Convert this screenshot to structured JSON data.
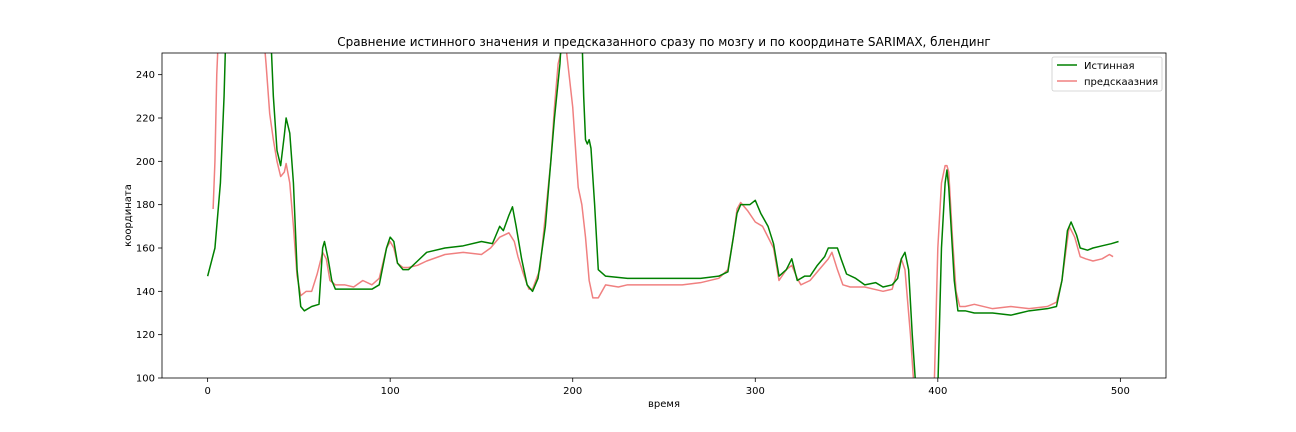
{
  "chart_data": {
    "type": "line",
    "title": "Сравнение истинного значения и предсказанного сразу по мозгу и по координате SARIMAX, блендинг",
    "xlabel": "время",
    "ylabel": "координата",
    "xlim": [
      -25,
      525
    ],
    "ylim": [
      100,
      250
    ],
    "xticks": [
      0,
      100,
      200,
      300,
      400,
      500
    ],
    "yticks": [
      100,
      120,
      140,
      160,
      180,
      200,
      220,
      240
    ],
    "grid": false,
    "legend_position": "top-right",
    "series": [
      {
        "name": "Истинная",
        "color": "#008000",
        "points": [
          [
            0,
            147
          ],
          [
            4,
            160
          ],
          [
            7,
            190
          ],
          [
            9,
            230
          ],
          [
            10,
            260
          ],
          [
            34,
            270
          ],
          [
            36,
            230
          ],
          [
            38,
            205
          ],
          [
            40,
            198
          ],
          [
            42,
            212
          ],
          [
            43,
            220
          ],
          [
            45,
            213
          ],
          [
            47,
            190
          ],
          [
            49,
            150
          ],
          [
            51,
            133
          ],
          [
            53,
            131
          ],
          [
            57,
            133
          ],
          [
            61,
            134
          ],
          [
            63,
            160
          ],
          [
            64,
            163
          ],
          [
            66,
            155
          ],
          [
            68,
            145
          ],
          [
            70,
            141
          ],
          [
            75,
            141
          ],
          [
            80,
            141
          ],
          [
            90,
            141
          ],
          [
            94,
            143
          ],
          [
            98,
            160
          ],
          [
            100,
            165
          ],
          [
            102,
            163
          ],
          [
            104,
            153
          ],
          [
            107,
            150
          ],
          [
            110,
            150
          ],
          [
            115,
            154
          ],
          [
            120,
            158
          ],
          [
            130,
            160
          ],
          [
            140,
            161
          ],
          [
            150,
            163
          ],
          [
            156,
            162
          ],
          [
            158,
            166
          ],
          [
            160,
            170
          ],
          [
            162,
            168
          ],
          [
            165,
            175
          ],
          [
            167,
            179
          ],
          [
            169,
            170
          ],
          [
            172,
            155
          ],
          [
            175,
            143
          ],
          [
            178,
            140
          ],
          [
            181,
            146
          ],
          [
            185,
            170
          ],
          [
            190,
            220
          ],
          [
            193,
            245
          ],
          [
            194,
            260
          ],
          [
            205,
            260
          ],
          [
            206,
            230
          ],
          [
            207,
            210
          ],
          [
            208,
            208
          ],
          [
            209,
            210
          ],
          [
            210,
            206
          ],
          [
            212,
            180
          ],
          [
            214,
            150
          ],
          [
            218,
            147
          ],
          [
            230,
            146
          ],
          [
            250,
            146
          ],
          [
            270,
            146
          ],
          [
            280,
            147
          ],
          [
            285,
            149
          ],
          [
            288,
            165
          ],
          [
            290,
            176
          ],
          [
            292,
            180
          ],
          [
            297,
            180
          ],
          [
            300,
            182
          ],
          [
            303,
            176
          ],
          [
            307,
            170
          ],
          [
            310,
            162
          ],
          [
            313,
            147
          ],
          [
            317,
            150
          ],
          [
            320,
            155
          ],
          [
            323,
            145
          ],
          [
            327,
            147
          ],
          [
            330,
            147
          ],
          [
            334,
            152
          ],
          [
            338,
            156
          ],
          [
            340,
            160
          ],
          [
            345,
            160
          ],
          [
            347,
            155
          ],
          [
            350,
            148
          ],
          [
            355,
            146
          ],
          [
            360,
            143
          ],
          [
            366,
            144
          ],
          [
            370,
            142
          ],
          [
            375,
            143
          ],
          [
            378,
            146
          ],
          [
            380,
            155
          ],
          [
            382,
            158
          ],
          [
            384,
            150
          ],
          [
            386,
            120
          ],
          [
            388,
            95
          ],
          [
            400,
            95
          ],
          [
            402,
            160
          ],
          [
            404,
            190
          ],
          [
            405,
            196
          ],
          [
            406,
            188
          ],
          [
            409,
            145
          ],
          [
            411,
            131
          ],
          [
            415,
            131
          ],
          [
            420,
            130
          ],
          [
            430,
            130
          ],
          [
            440,
            129
          ],
          [
            450,
            131
          ],
          [
            460,
            132
          ],
          [
            465,
            133
          ],
          [
            468,
            145
          ],
          [
            471,
            168
          ],
          [
            473,
            172
          ],
          [
            476,
            166
          ],
          [
            478,
            160
          ],
          [
            482,
            159
          ],
          [
            485,
            160
          ],
          [
            490,
            161
          ],
          [
            495,
            162
          ],
          [
            499,
            163
          ]
        ]
      },
      {
        "name": "предскаазния",
        "color": "#f08080",
        "points": [
          [
            3,
            178
          ],
          [
            4,
            200
          ],
          [
            5,
            240
          ],
          [
            6,
            260
          ],
          [
            30,
            265
          ],
          [
            32,
            245
          ],
          [
            34,
            222
          ],
          [
            36,
            210
          ],
          [
            38,
            200
          ],
          [
            40,
            193
          ],
          [
            42,
            195
          ],
          [
            43,
            199
          ],
          [
            45,
            190
          ],
          [
            47,
            170
          ],
          [
            49,
            147
          ],
          [
            51,
            138
          ],
          [
            54,
            140
          ],
          [
            57,
            140
          ],
          [
            60,
            148
          ],
          [
            63,
            158
          ],
          [
            65,
            155
          ],
          [
            67,
            145
          ],
          [
            70,
            143
          ],
          [
            75,
            143
          ],
          [
            80,
            142
          ],
          [
            85,
            145
          ],
          [
            90,
            143
          ],
          [
            94,
            146
          ],
          [
            98,
            160
          ],
          [
            100,
            163
          ],
          [
            102,
            160
          ],
          [
            104,
            153
          ],
          [
            107,
            151
          ],
          [
            110,
            151
          ],
          [
            115,
            152
          ],
          [
            120,
            154
          ],
          [
            130,
            157
          ],
          [
            140,
            158
          ],
          [
            150,
            157
          ],
          [
            155,
            160
          ],
          [
            160,
            165
          ],
          [
            165,
            167
          ],
          [
            168,
            163
          ],
          [
            170,
            156
          ],
          [
            173,
            148
          ],
          [
            176,
            141
          ],
          [
            178,
            141
          ],
          [
            182,
            150
          ],
          [
            185,
            175
          ],
          [
            188,
            200
          ],
          [
            190,
            225
          ],
          [
            192,
            245
          ],
          [
            194,
            252
          ],
          [
            196,
            255
          ],
          [
            198,
            240
          ],
          [
            200,
            225
          ],
          [
            202,
            200
          ],
          [
            203,
            188
          ],
          [
            205,
            180
          ],
          [
            207,
            165
          ],
          [
            209,
            145
          ],
          [
            211,
            137
          ],
          [
            214,
            137
          ],
          [
            218,
            143
          ],
          [
            225,
            142
          ],
          [
            230,
            143
          ],
          [
            240,
            143
          ],
          [
            250,
            143
          ],
          [
            260,
            143
          ],
          [
            270,
            144
          ],
          [
            280,
            146
          ],
          [
            285,
            150
          ],
          [
            288,
            165
          ],
          [
            290,
            178
          ],
          [
            292,
            181
          ],
          [
            296,
            177
          ],
          [
            300,
            172
          ],
          [
            304,
            170
          ],
          [
            310,
            160
          ],
          [
            313,
            145
          ],
          [
            317,
            150
          ],
          [
            320,
            152
          ],
          [
            323,
            146
          ],
          [
            325,
            143
          ],
          [
            330,
            145
          ],
          [
            335,
            150
          ],
          [
            340,
            155
          ],
          [
            342,
            158
          ],
          [
            345,
            150
          ],
          [
            348,
            143
          ],
          [
            352,
            142
          ],
          [
            360,
            142
          ],
          [
            365,
            141
          ],
          [
            370,
            140
          ],
          [
            375,
            141
          ],
          [
            378,
            150
          ],
          [
            380,
            155
          ],
          [
            382,
            150
          ],
          [
            385,
            120
          ],
          [
            387,
            95
          ],
          [
            398,
            95
          ],
          [
            400,
            160
          ],
          [
            402,
            190
          ],
          [
            404,
            198
          ],
          [
            405,
            198
          ],
          [
            406,
            195
          ],
          [
            408,
            165
          ],
          [
            410,
            140
          ],
          [
            412,
            133
          ],
          [
            415,
            133
          ],
          [
            420,
            134
          ],
          [
            430,
            132
          ],
          [
            440,
            133
          ],
          [
            450,
            132
          ],
          [
            460,
            133
          ],
          [
            465,
            135
          ],
          [
            468,
            145
          ],
          [
            472,
            170
          ],
          [
            475,
            165
          ],
          [
            478,
            156
          ],
          [
            481,
            155
          ],
          [
            485,
            154
          ],
          [
            490,
            155
          ],
          [
            494,
            157
          ],
          [
            496,
            156
          ]
        ]
      }
    ]
  }
}
